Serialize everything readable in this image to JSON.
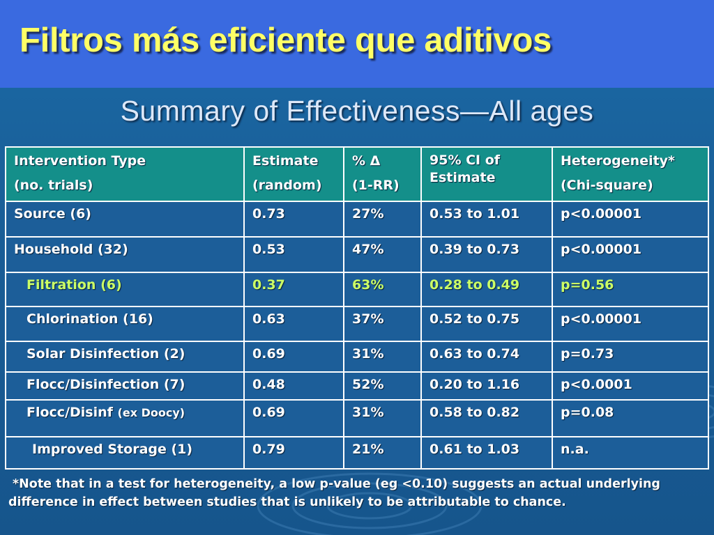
{
  "slide": {
    "title": "Filtros más eficiente que aditivos",
    "subtitle": "Summary of Effectiveness—All ages"
  },
  "table": {
    "headers": [
      {
        "line1": "Intervention Type",
        "line2": "(no. trials)"
      },
      {
        "line1": "Estimate",
        "line2": "(random)"
      },
      {
        "line1": "% Δ",
        "line2": "(1-RR)"
      },
      {
        "line1": "95% CI of Estimate",
        "line2": ""
      },
      {
        "line1": "Heterogeneity*",
        "line2": "(Chi-square)"
      }
    ],
    "rows": [
      {
        "type": "Source (6)",
        "type_note": "",
        "estimate": "0.73",
        "pct": "27%",
        "ci": "0.53 to 1.01",
        "het": "p<0.00001",
        "highlight": false,
        "indent": 0
      },
      {
        "type": "Household (32)",
        "type_note": "",
        "estimate": "0.53",
        "pct": "47%",
        "ci": "0.39 to 0.73",
        "het": "p<0.00001",
        "highlight": false,
        "indent": 0
      },
      {
        "type": "Filtration (6)",
        "type_note": "",
        "estimate": "0.37",
        "pct": "63%",
        "ci": "0.28 to 0.49",
        "het": "p=0.56",
        "highlight": true,
        "indent": 1
      },
      {
        "type": "Chlorination (16)",
        "type_note": "",
        "estimate": "0.63",
        "pct": "37%",
        "ci": "0.52 to 0.75",
        "het": "p<0.00001",
        "highlight": false,
        "indent": 1
      },
      {
        "type": "Solar Disinfection (2)",
        "type_note": "",
        "estimate": "0.69",
        "pct": "31%",
        "ci": "0.63 to 0.74",
        "het": "p=0.73",
        "highlight": false,
        "indent": 1
      },
      {
        "type": "Flocc/Disinfection (7)",
        "type_note": "",
        "estimate": "0.48",
        "pct": "52%",
        "ci": "0.20 to 1.16",
        "het": "p<0.0001",
        "highlight": false,
        "indent": 1
      },
      {
        "type": "Flocc/Disinf",
        "type_note": "(ex Doocy)",
        "estimate": "0.69",
        "pct": "31%",
        "ci": "0.58 to 0.82",
        "het": "p=0.08",
        "highlight": false,
        "indent": 1
      },
      {
        "type": "Improved Storage (1)",
        "type_note": "",
        "estimate": "0.79",
        "pct": "21%",
        "ci": "0.61 to 1.03",
        "het": "n.a.",
        "highlight": false,
        "indent": 2
      }
    ]
  },
  "footnote": {
    "text": "*Note that in a test for heterogeneity, a low p-value (eg <0.10) suggests an actual underlying difference in effect between studies that is unlikely to be attributable to chance."
  },
  "colors": {
    "title": "#ffff66",
    "header_bg": "#148f8a",
    "highlight_text": "#ccff66",
    "title_band": "#3a6ae0"
  }
}
